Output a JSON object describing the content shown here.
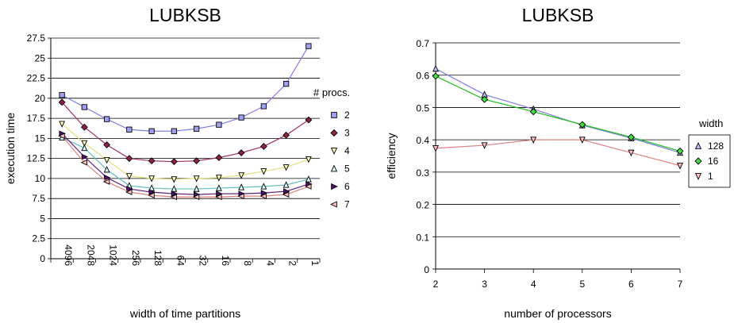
{
  "chart_data": [
    {
      "type": "line",
      "title": "LUBKSB",
      "xlabel": "width of time partitions",
      "ylabel": "execution time",
      "ylim": [
        0,
        27.5
      ],
      "yticks": [
        "0",
        "2.5",
        "5",
        "7.5",
        "10",
        "12.5",
        "15",
        "17.5",
        "20",
        "22.5",
        "25",
        "27.5"
      ],
      "categories": [
        "4096",
        "2048",
        "1024",
        "256",
        "128",
        "64",
        "32",
        "16",
        "8",
        "4",
        "2",
        "1"
      ],
      "grid": "horizontal",
      "legend_title": "# procs.",
      "legend_position": "right",
      "series": [
        {
          "name": "2",
          "color": "#8080e0",
          "fill": "#a0a0f0",
          "marker": "square",
          "values": [
            20.4,
            18.9,
            17.4,
            16.1,
            15.9,
            15.9,
            16.2,
            16.7,
            17.6,
            19.0,
            21.8,
            26.5
          ]
        },
        {
          "name": "3",
          "color": "#a0305a",
          "fill": "#902050",
          "marker": "diamond",
          "values": [
            19.5,
            16.4,
            14.2,
            12.5,
            12.2,
            12.1,
            12.2,
            12.6,
            13.2,
            14.0,
            15.4,
            17.3
          ]
        },
        {
          "name": "4",
          "color": "#e0e080",
          "fill": "#ffffc0",
          "marker": "triangle-down",
          "values": [
            16.8,
            14.4,
            12.3,
            10.3,
            10.0,
            9.9,
            10.0,
            10.1,
            10.4,
            10.9,
            11.4,
            12.4
          ]
        },
        {
          "name": "5",
          "color": "#60c0c0",
          "fill": "#e0ffff",
          "marker": "triangle-up",
          "values": [
            15.1,
            13.8,
            11.1,
            9.1,
            8.8,
            8.7,
            8.7,
            8.8,
            8.9,
            9.0,
            9.2,
            9.9
          ]
        },
        {
          "name": "6",
          "color": "#602080",
          "fill": "#501070",
          "marker": "triangle-right",
          "values": [
            15.6,
            12.7,
            10.1,
            8.7,
            8.3,
            8.1,
            8.0,
            8.1,
            8.1,
            8.2,
            8.4,
            9.3
          ]
        },
        {
          "name": "7",
          "color": "#e08080",
          "fill": "#ffc0c0",
          "marker": "triangle-left",
          "values": [
            15.3,
            12.0,
            9.6,
            8.3,
            7.9,
            7.7,
            7.7,
            7.7,
            7.8,
            7.8,
            8.0,
            9.0
          ]
        }
      ]
    },
    {
      "type": "line",
      "title": "LUBKSB",
      "xlabel": "number of processors",
      "ylabel": "efficiency",
      "ylim": [
        0,
        0.7
      ],
      "xlim": [
        2,
        7
      ],
      "yticks": [
        "0",
        "0.1",
        "0.2",
        "0.3",
        "0.4",
        "0.5",
        "0.6",
        "0.7"
      ],
      "xticks": [
        "2",
        "3",
        "4",
        "5",
        "6",
        "7"
      ],
      "x": [
        2,
        3,
        4,
        5,
        6,
        7
      ],
      "grid": "horizontal",
      "legend_title": "width",
      "legend_position": "right",
      "series": [
        {
          "name": "128",
          "color": "#8080e0",
          "fill": "#c0c0ff",
          "marker": "triangle-up",
          "values": [
            0.62,
            0.54,
            0.495,
            0.445,
            0.405,
            0.36
          ]
        },
        {
          "name": "16",
          "color": "#20c020",
          "fill": "#40e040",
          "marker": "diamond",
          "values": [
            0.597,
            0.525,
            0.487,
            0.447,
            0.408,
            0.365
          ]
        },
        {
          "name": "1",
          "color": "#e08080",
          "fill": "#ffc0c0",
          "marker": "triangle-down",
          "values": [
            0.374,
            0.383,
            0.4,
            0.4,
            0.36,
            0.32
          ]
        }
      ]
    }
  ]
}
